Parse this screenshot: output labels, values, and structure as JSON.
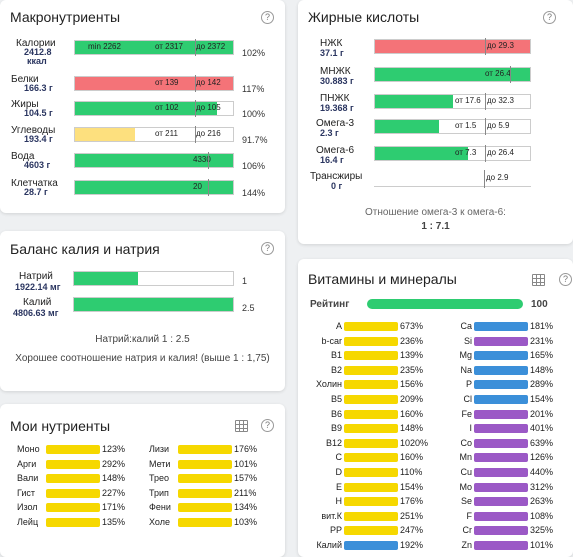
{
  "macros": {
    "title": "Макронутриенты",
    "help": "?",
    "rows": [
      {
        "name": "Калории",
        "value": "2412.8",
        "unit": "ккал",
        "bar_color": "#2ecc71",
        "fill": 1.0,
        "t1": "min 2262",
        "t2": "от 2317",
        "t3": "до 2372",
        "pct": "102%"
      },
      {
        "name": "Белки",
        "value": "166.3 г",
        "bar_color": "#f47378",
        "fill": 1.0,
        "t2": "от 139",
        "t3": "до 142",
        "pct": "117%"
      },
      {
        "name": "Жиры",
        "value": "104.5 г",
        "bar_color": "#2ecc71",
        "fill": 0.9,
        "t2": "от 102",
        "t3": "до 105",
        "pct": "100%"
      },
      {
        "name": "Углеводы",
        "value": "193.4 г",
        "bar_color": "#fde07e",
        "fill": 0.38,
        "t2": "от 211",
        "t3": "до 216",
        "pct": "91.7%"
      },
      {
        "name": "Вода",
        "value": "4603 г",
        "bar_color": "#2ecc71",
        "fill": 1.0,
        "t2": "4330",
        "pct": "106%"
      },
      {
        "name": "Клетчатка",
        "value": "28.7 г",
        "bar_color": "#2ecc71",
        "fill": 1.0,
        "t2": "20",
        "pct": "144%"
      }
    ]
  },
  "balance": {
    "title": "Баланс калия и натрия",
    "help": "?",
    "rows": [
      {
        "name": "Натрий",
        "value": "1922.14 мг",
        "fill": 0.4,
        "num": "1"
      },
      {
        "name": "Калий",
        "value": "4806.63 мг",
        "fill": 1.0,
        "num": "2.5"
      }
    ],
    "ratio": "Натрий:калий 1 : 2.5",
    "note": "Хорошее соотношение натрия и калия! (выше 1 : 1,75)"
  },
  "mynut": {
    "title": "Мои нутриенты",
    "help": "?",
    "left": [
      {
        "name": "Моно",
        "pct": "123%"
      },
      {
        "name": "Арги",
        "pct": "292%"
      },
      {
        "name": "Вали",
        "pct": "148%"
      },
      {
        "name": "Гист",
        "pct": "227%"
      },
      {
        "name": "Изол",
        "pct": "171%"
      },
      {
        "name": "Лейц",
        "pct": "135%"
      }
    ],
    "right": [
      {
        "name": "Лизи",
        "pct": "176%"
      },
      {
        "name": "Мети",
        "pct": "101%"
      },
      {
        "name": "Трео",
        "pct": "157%"
      },
      {
        "name": "Трип",
        "pct": "211%"
      },
      {
        "name": "Фени",
        "pct": "134%"
      },
      {
        "name": "Холе",
        "pct": "103%"
      }
    ]
  },
  "fats": {
    "title": "Жирные кислоты",
    "help": "?",
    "rows": [
      {
        "name": "НЖК",
        "value": "37.1 г",
        "bar_color": "#f47378",
        "fill": 1.0,
        "t3": "до 29.3"
      },
      {
        "name": "МНЖК",
        "value": "30.883 г",
        "bar_color": "#2ecc71",
        "fill": 1.0,
        "t2": "от 26.4"
      },
      {
        "name": "ПНЖК",
        "value": "19.368 г",
        "bar_color": "#2ecc71",
        "fill": 0.5,
        "t2": "от 17.6",
        "t3": "до 32.3"
      },
      {
        "name": "Омега-3",
        "value": "2.3 г",
        "bar_color": "#2ecc71",
        "fill": 0.41,
        "t2": "от 1.5",
        "t3": "до 5.9"
      },
      {
        "name": "Омега-6",
        "value": "16.4 г",
        "bar_color": "#2ecc71",
        "fill": 0.6,
        "t2": "от 7.3",
        "t3": "до 26.4"
      },
      {
        "name": "Трансжиры",
        "value": "0 г",
        "bar_color": "#2ecc71",
        "fill": 0.0,
        "t3": "до 2.9"
      }
    ],
    "ratio_label": "Отношение омега-3 к омега-6:",
    "ratio_value": "1 : 7.1"
  },
  "vitamins": {
    "title": "Витамины и минералы",
    "help": "?",
    "rating_label": "Рейтинг",
    "rating_value": "100",
    "left": [
      {
        "name": "A",
        "pct": "673%",
        "color": "#f6d800"
      },
      {
        "name": "b-car",
        "pct": "236%",
        "color": "#f6d800"
      },
      {
        "name": "B1",
        "pct": "139%",
        "color": "#f6d800"
      },
      {
        "name": "B2",
        "pct": "235%",
        "color": "#f6d800"
      },
      {
        "name": "Холин",
        "pct": "156%",
        "color": "#f6d800"
      },
      {
        "name": "B5",
        "pct": "209%",
        "color": "#f6d800"
      },
      {
        "name": "B6",
        "pct": "160%",
        "color": "#f6d800"
      },
      {
        "name": "B9",
        "pct": "148%",
        "color": "#f6d800"
      },
      {
        "name": "B12",
        "pct": "1020%",
        "color": "#f6d800"
      },
      {
        "name": "C",
        "pct": "160%",
        "color": "#f6d800"
      },
      {
        "name": "D",
        "pct": "110%",
        "color": "#f6d800"
      },
      {
        "name": "E",
        "pct": "154%",
        "color": "#f6d800"
      },
      {
        "name": "H",
        "pct": "176%",
        "color": "#f6d800"
      },
      {
        "name": "вит.К",
        "pct": "251%",
        "color": "#f6d800"
      },
      {
        "name": "PP",
        "pct": "247%",
        "color": "#f6d800"
      },
      {
        "name": "Калий",
        "pct": "192%",
        "color": "#3b8fd9"
      }
    ],
    "right": [
      {
        "name": "Ca",
        "pct": "181%",
        "color": "#3b8fd9"
      },
      {
        "name": "Si",
        "pct": "231%",
        "color": "#9b59c6"
      },
      {
        "name": "Mg",
        "pct": "165%",
        "color": "#3b8fd9"
      },
      {
        "name": "Na",
        "pct": "148%",
        "color": "#3b8fd9"
      },
      {
        "name": "P",
        "pct": "289%",
        "color": "#3b8fd9"
      },
      {
        "name": "Cl",
        "pct": "154%",
        "color": "#3b8fd9"
      },
      {
        "name": "Fe",
        "pct": "201%",
        "color": "#9b59c6"
      },
      {
        "name": "I",
        "pct": "401%",
        "color": "#9b59c6"
      },
      {
        "name": "Co",
        "pct": "639%",
        "color": "#9b59c6"
      },
      {
        "name": "Mn",
        "pct": "126%",
        "color": "#9b59c6"
      },
      {
        "name": "Cu",
        "pct": "440%",
        "color": "#9b59c6"
      },
      {
        "name": "Mo",
        "pct": "312%",
        "color": "#9b59c6"
      },
      {
        "name": "Se",
        "pct": "263%",
        "color": "#9b59c6"
      },
      {
        "name": "F",
        "pct": "108%",
        "color": "#9b59c6"
      },
      {
        "name": "Cr",
        "pct": "325%",
        "color": "#9b59c6"
      },
      {
        "name": "Zn",
        "pct": "101%",
        "color": "#9b59c6"
      }
    ]
  }
}
